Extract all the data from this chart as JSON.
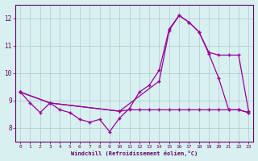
{
  "xlabel": "Windchill (Refroidissement éolien,°C)",
  "bg_color": "#d8f0f0",
  "line_color": "#990099",
  "grid_color": "#b0c8d0",
  "axis_color": "#660066",
  "text_color": "#660066",
  "xlim": [
    -0.5,
    23.5
  ],
  "ylim": [
    7.5,
    12.5
  ],
  "yticks": [
    8,
    9,
    10,
    11,
    12
  ],
  "xticks": [
    0,
    1,
    2,
    3,
    4,
    5,
    6,
    7,
    8,
    9,
    10,
    11,
    12,
    13,
    14,
    15,
    16,
    17,
    18,
    19,
    20,
    21,
    22,
    23
  ],
  "line1_x": [
    0,
    1,
    2,
    3,
    4,
    5,
    6,
    7,
    8,
    9,
    10,
    11,
    12,
    13,
    14,
    15,
    16,
    17,
    18,
    19,
    20,
    21,
    22,
    23
  ],
  "line1_y": [
    9.3,
    8.9,
    8.55,
    8.9,
    8.65,
    8.55,
    8.3,
    8.2,
    8.3,
    7.85,
    8.35,
    8.7,
    9.3,
    9.55,
    10.1,
    11.6,
    12.1,
    11.85,
    11.5,
    10.7,
    9.8,
    8.65,
    8.65,
    8.55
  ],
  "line2_x": [
    0,
    3,
    10,
    11,
    12,
    13,
    14,
    15,
    16,
    17,
    18,
    19,
    20,
    21,
    22,
    23
  ],
  "line2_y": [
    9.3,
    8.9,
    8.6,
    8.65,
    8.65,
    8.65,
    8.65,
    8.65,
    8.65,
    8.65,
    8.65,
    8.65,
    8.65,
    8.65,
    8.65,
    8.55
  ],
  "line3_x": [
    0,
    3,
    10,
    14,
    15,
    16,
    17,
    18,
    19,
    20,
    21,
    22,
    23
  ],
  "line3_y": [
    9.3,
    8.9,
    8.6,
    9.7,
    11.55,
    12.1,
    11.85,
    11.5,
    10.75,
    10.65,
    10.65,
    10.65,
    8.6
  ]
}
